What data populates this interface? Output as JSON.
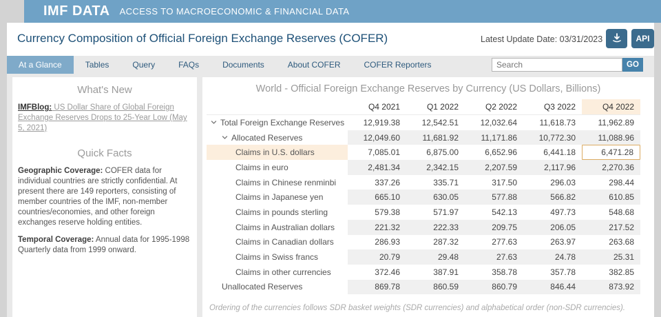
{
  "banner": {
    "brand": "IMF DATA",
    "tagline": "ACCESS TO MACROECONOMIC & FINANCIAL DATA"
  },
  "header": {
    "title": "Currency Composition of Official Foreign Exchange Reserves (COFER)",
    "latest_update": "Latest Update Date: 03/31/2023",
    "api_label": "API"
  },
  "nav": {
    "items": [
      {
        "label": "At a Glance",
        "active": true
      },
      {
        "label": "Tables",
        "active": false
      },
      {
        "label": "Query",
        "active": false
      },
      {
        "label": "FAQs",
        "active": false
      },
      {
        "label": "Documents",
        "active": false
      },
      {
        "label": "About COFER",
        "active": false
      },
      {
        "label": "COFER Reporters",
        "active": false
      }
    ],
    "search_placeholder": "Search",
    "go_label": "GO"
  },
  "sidebar": {
    "whats_new": {
      "heading": "What's New",
      "link_prefix": "IMFBlog:",
      "link_text": " US Dollar Share of Global Foreign Exchange Reserves Drops to 25-Year Low (May 5, 2021)"
    },
    "quick_facts": {
      "heading": "Quick Facts",
      "geographic_label": "Geographic Coverage:",
      "geographic_text": " COFER data for individual countries are strictly confidential. At present there are 149 reporters, consisting of member countries of the IMF, non-member countries/economies, and other foreign exchanges reserve holding entities.",
      "temporal_label": "Temporal Coverage:",
      "temporal_text": " Annual data for 1995-1998 Quarterly data from 1999 onward."
    }
  },
  "table": {
    "title": "World - Official Foreign Exchange Reserves by Currency (US Dollars, Billions)",
    "columns": [
      "Q4 2021",
      "Q1 2022",
      "Q2 2022",
      "Q3 2022",
      "Q4 2022"
    ],
    "highlighted_column_index": 4,
    "highlighted_row_index": 2,
    "selected_cell": {
      "row_index": 2,
      "col_index": 4,
      "value": "6,471.28"
    },
    "rows": [
      {
        "label": "Total Foreign Exchange Reserves",
        "indent": 0,
        "caret": true,
        "shaded": false,
        "values": [
          "12,919.38",
          "12,542.51",
          "12,032.64",
          "11,618.73",
          "11,962.89"
        ]
      },
      {
        "label": "Allocated Reserves",
        "indent": 1,
        "caret": true,
        "shaded": true,
        "values": [
          "12,049.60",
          "11,681.92",
          "11,171.86",
          "10,772.30",
          "11,088.96"
        ]
      },
      {
        "label": "Claims in U.S. dollars",
        "indent": 2,
        "caret": false,
        "shaded": false,
        "values": [
          "7,085.01",
          "6,875.00",
          "6,652.96",
          "6,441.18",
          "6,471.28"
        ]
      },
      {
        "label": "Claims in euro",
        "indent": 2,
        "caret": false,
        "shaded": true,
        "values": [
          "2,481.34",
          "2,342.15",
          "2,207.59",
          "2,117.96",
          "2,270.36"
        ]
      },
      {
        "label": "Claims in Chinese renminbi",
        "indent": 2,
        "caret": false,
        "shaded": false,
        "values": [
          "337.26",
          "335.71",
          "317.50",
          "296.03",
          "298.44"
        ]
      },
      {
        "label": "Claims in Japanese yen",
        "indent": 2,
        "caret": false,
        "shaded": true,
        "values": [
          "665.10",
          "630.05",
          "577.88",
          "566.82",
          "610.85"
        ]
      },
      {
        "label": "Claims in pounds sterling",
        "indent": 2,
        "caret": false,
        "shaded": false,
        "values": [
          "579.38",
          "571.97",
          "542.13",
          "497.73",
          "548.68"
        ]
      },
      {
        "label": "Claims in Australian dollars",
        "indent": 2,
        "caret": false,
        "shaded": true,
        "values": [
          "221.32",
          "222.33",
          "209.75",
          "206.05",
          "217.52"
        ]
      },
      {
        "label": "Claims in Canadian dollars",
        "indent": 2,
        "caret": false,
        "shaded": false,
        "values": [
          "286.93",
          "287.32",
          "277.63",
          "263.97",
          "263.68"
        ]
      },
      {
        "label": "Claims in Swiss francs",
        "indent": 2,
        "caret": false,
        "shaded": true,
        "values": [
          "20.79",
          "29.48",
          "27.63",
          "24.78",
          "25.31"
        ]
      },
      {
        "label": "Claims in other currencies",
        "indent": 2,
        "caret": false,
        "shaded": false,
        "values": [
          "372.46",
          "387.91",
          "358.78",
          "357.78",
          "382.85"
        ]
      },
      {
        "label": "Unallocated Reserves",
        "indent": 1,
        "caret": false,
        "shaded": true,
        "values": [
          "869.78",
          "860.59",
          "860.79",
          "846.44",
          "873.92"
        ]
      }
    ],
    "footnote": "Ordering of the currencies follows SDR basket weights (SDR currencies) and alphabetical order (non-SDR currencies)."
  },
  "colors": {
    "banner_blue": "#6fa2c6",
    "active_tab_blue": "#7faac9",
    "button_dark_blue": "#3b6b8d",
    "go_button_blue": "#4682ab",
    "title_navy": "#1d5077",
    "row_highlight_cream": "#fceedd",
    "selected_cell_border": "#dcab62",
    "shaded_row_gray": "#f0f0f0"
  }
}
